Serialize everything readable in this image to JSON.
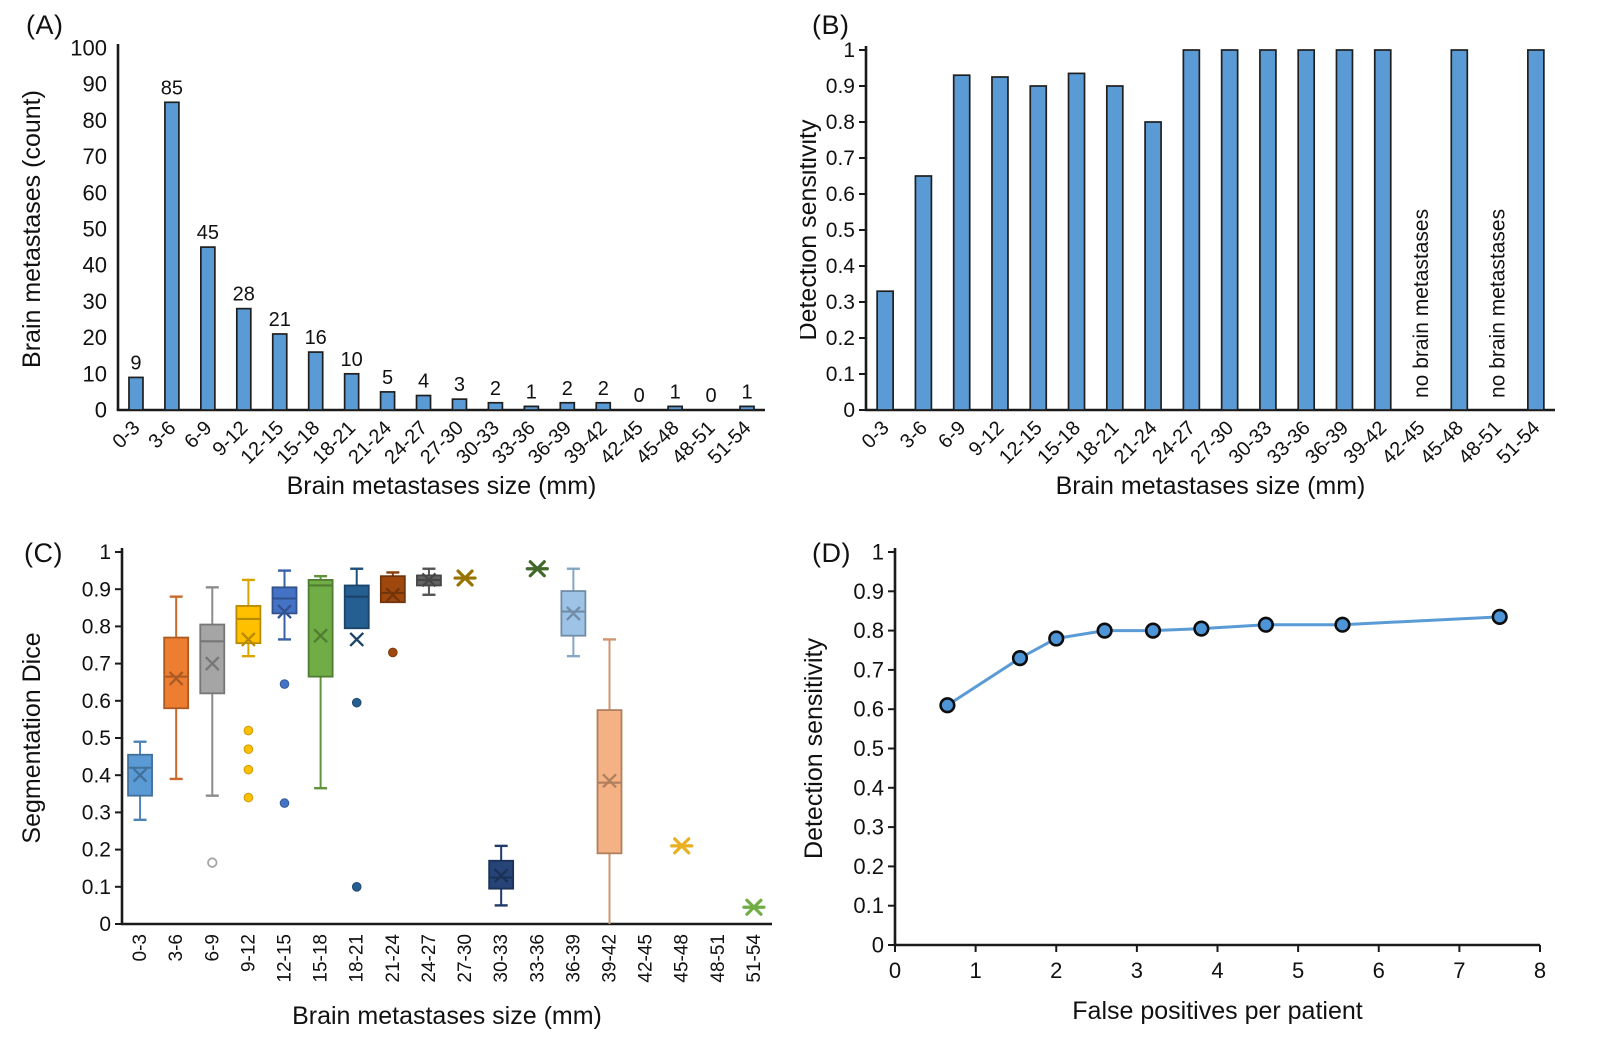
{
  "figure": {
    "background": "#ffffff",
    "accent_blue": "#5B9BD5",
    "axis_color": "#1a1a1a"
  },
  "chart_data": [
    {
      "panel_label": "(A)",
      "type": "bar",
      "xlabel": "Brain metastases size (mm)",
      "ylabel": "Brain metastases (count)",
      "categories": [
        "0-3",
        "3-6",
        "6-9",
        "9-12",
        "12-15",
        "15-18",
        "18-21",
        "21-24",
        "24-27",
        "27-30",
        "30-33",
        "33-36",
        "36-39",
        "39-42",
        "42-45",
        "45-48",
        "48-51",
        "51-54"
      ],
      "values": [
        9,
        85,
        45,
        28,
        21,
        16,
        10,
        5,
        4,
        3,
        2,
        1,
        2,
        2,
        0,
        1,
        0,
        1
      ],
      "data_labels": [
        "9",
        "85",
        "45",
        "28",
        "21",
        "16",
        "10",
        "5",
        "4",
        "3",
        "2",
        "1",
        "2",
        "2",
        "0",
        "1",
        "0",
        "1"
      ],
      "ylim": [
        0,
        100
      ],
      "y_ticks": [
        "0",
        "10",
        "20",
        "30",
        "40",
        "50",
        "60",
        "70",
        "80",
        "90",
        "100"
      ],
      "bar_color": "#5B9BD5",
      "bar_border": "#1f1f1f",
      "legend": "none",
      "grid": "off"
    },
    {
      "panel_label": "(B)",
      "type": "bar",
      "xlabel": "Brain metastases size (mm)",
      "ylabel": "Detection sensitivity",
      "categories": [
        "0-3",
        "3-6",
        "6-9",
        "9-12",
        "12-15",
        "15-18",
        "18-21",
        "21-24",
        "24-27",
        "27-30",
        "30-33",
        "33-36",
        "36-39",
        "39-42",
        "42-45",
        "45-48",
        "48-51",
        "51-54"
      ],
      "values": [
        0.33,
        0.65,
        0.93,
        0.925,
        0.9,
        0.935,
        0.9,
        0.8,
        1,
        1,
        1,
        1,
        1,
        1,
        null,
        1,
        null,
        1
      ],
      "annotations": [
        {
          "index": 14,
          "text": "no brain metastases"
        },
        {
          "index": 16,
          "text": "no brain metastases"
        }
      ],
      "ylim": [
        0,
        1
      ],
      "y_ticks": [
        "0",
        "0.1",
        "0.2",
        "0.3",
        "0.4",
        "0.5",
        "0.6",
        "0.7",
        "0.8",
        "0.9",
        "1"
      ],
      "bar_color": "#5B9BD5",
      "bar_border": "#1f1f1f",
      "legend": "none",
      "grid": "off"
    },
    {
      "panel_label": "(C)",
      "type": "boxplot",
      "xlabel": "Brain metastases size (mm)",
      "ylabel": "Segmentation Dice",
      "categories": [
        "0-3",
        "3-6",
        "6-9",
        "9-12",
        "12-15",
        "15-18",
        "18-21",
        "21-24",
        "24-27",
        "27-30",
        "30-33",
        "33-36",
        "36-39",
        "39-42",
        "42-45",
        "45-48",
        "48-51",
        "51-54"
      ],
      "ylim": [
        0,
        1
      ],
      "y_ticks": [
        "0",
        "0.1",
        "0.2",
        "0.3",
        "0.4",
        "0.5",
        "0.6",
        "0.7",
        "0.8",
        "0.9",
        "1"
      ],
      "boxes": [
        {
          "category": "0-3",
          "color": "#5B9BD5",
          "low": 0.28,
          "q1": 0.345,
          "median": 0.42,
          "q3": 0.455,
          "high": 0.49,
          "mean": 0.4,
          "outliers": []
        },
        {
          "category": "3-6",
          "color": "#ED7D31",
          "low": 0.39,
          "q1": 0.58,
          "median": 0.665,
          "q3": 0.77,
          "high": 0.88,
          "mean": 0.66,
          "outliers": []
        },
        {
          "category": "6-9",
          "color": "#A5A5A5",
          "low": 0.345,
          "q1": 0.62,
          "median": 0.76,
          "q3": 0.805,
          "high": 0.905,
          "mean": 0.7,
          "outliers": [
            {
              "v": 0.165,
              "open": true
            }
          ]
        },
        {
          "category": "9-12",
          "color": "#FFC000",
          "low": 0.72,
          "q1": 0.755,
          "median": 0.82,
          "q3": 0.855,
          "high": 0.925,
          "mean": 0.765,
          "outliers": [
            {
              "v": 0.52
            },
            {
              "v": 0.47
            },
            {
              "v": 0.415
            },
            {
              "v": 0.34
            }
          ]
        },
        {
          "category": "12-15",
          "color": "#4472C4",
          "low": 0.765,
          "q1": 0.835,
          "median": 0.875,
          "q3": 0.905,
          "high": 0.95,
          "mean": 0.84,
          "outliers": [
            {
              "v": 0.645
            },
            {
              "v": 0.325
            }
          ]
        },
        {
          "category": "15-18",
          "color": "#70AD47",
          "low": 0.365,
          "q1": 0.665,
          "median": 0.91,
          "q3": 0.925,
          "high": 0.935,
          "mean": 0.775,
          "outliers": []
        },
        {
          "category": "18-21",
          "color": "#255E91",
          "low": 0.795,
          "q1": 0.795,
          "median": 0.88,
          "q3": 0.91,
          "high": 0.955,
          "mean": 0.765,
          "outliers": [
            {
              "v": 0.595
            },
            {
              "v": 0.1
            }
          ]
        },
        {
          "category": "21-24",
          "color": "#9E480E",
          "low": 0.865,
          "q1": 0.865,
          "median": 0.89,
          "q3": 0.935,
          "high": 0.945,
          "mean": 0.885,
          "outliers": [
            {
              "v": 0.73
            }
          ]
        },
        {
          "category": "24-27",
          "color": "#636363",
          "low": 0.885,
          "q1": 0.91,
          "median": 0.925,
          "q3": 0.937,
          "high": 0.955,
          "mean": 0.925,
          "outliers": []
        },
        {
          "category": "30-33",
          "color": "#264478",
          "low": 0.05,
          "q1": 0.095,
          "median": 0.125,
          "q3": 0.17,
          "high": 0.21,
          "mean": 0.13,
          "outliers": []
        },
        {
          "category": "36-39",
          "color": "#9DC3E6",
          "low": 0.72,
          "q1": 0.775,
          "median": 0.84,
          "q3": 0.895,
          "high": 0.955,
          "mean": 0.835,
          "outliers": []
        },
        {
          "category": "39-42",
          "color": "#F4B183",
          "low": 0.0,
          "q1": 0.19,
          "median": 0.38,
          "q3": 0.575,
          "high": 0.765,
          "mean": 0.385,
          "outliers": []
        }
      ],
      "singles": [
        {
          "category": "27-30",
          "value": 0.93,
          "color": "#997300"
        },
        {
          "category": "33-36",
          "value": 0.955,
          "color": "#43682B"
        },
        {
          "category": "45-48",
          "value": 0.21,
          "color": "#E9B021"
        },
        {
          "category": "51-54",
          "value": 0.045,
          "color": "#70AD47"
        }
      ],
      "legend": "none",
      "grid": "off"
    },
    {
      "panel_label": "(D)",
      "type": "line",
      "xlabel": "False positives per patient",
      "ylabel": "Detection sensitivity",
      "points": [
        {
          "x": 0.65,
          "y": 0.61
        },
        {
          "x": 1.55,
          "y": 0.73
        },
        {
          "x": 2.0,
          "y": 0.78
        },
        {
          "x": 2.6,
          "y": 0.8
        },
        {
          "x": 3.2,
          "y": 0.8
        },
        {
          "x": 3.8,
          "y": 0.805
        },
        {
          "x": 4.6,
          "y": 0.815
        },
        {
          "x": 5.55,
          "y": 0.815
        },
        {
          "x": 7.5,
          "y": 0.835
        }
      ],
      "xlim": [
        0,
        8
      ],
      "x_ticks": [
        "0",
        "1",
        "2",
        "3",
        "4",
        "5",
        "6",
        "7",
        "8"
      ],
      "ylim": [
        0,
        1
      ],
      "y_ticks": [
        "0",
        "0.1",
        "0.2",
        "0.3",
        "0.4",
        "0.5",
        "0.6",
        "0.7",
        "0.8",
        "0.9",
        "1"
      ],
      "line_color": "#5B9BD5",
      "marker_fill": "#4E95D8",
      "marker_border": "#0d0d0d",
      "legend": "none",
      "grid": "off"
    }
  ]
}
